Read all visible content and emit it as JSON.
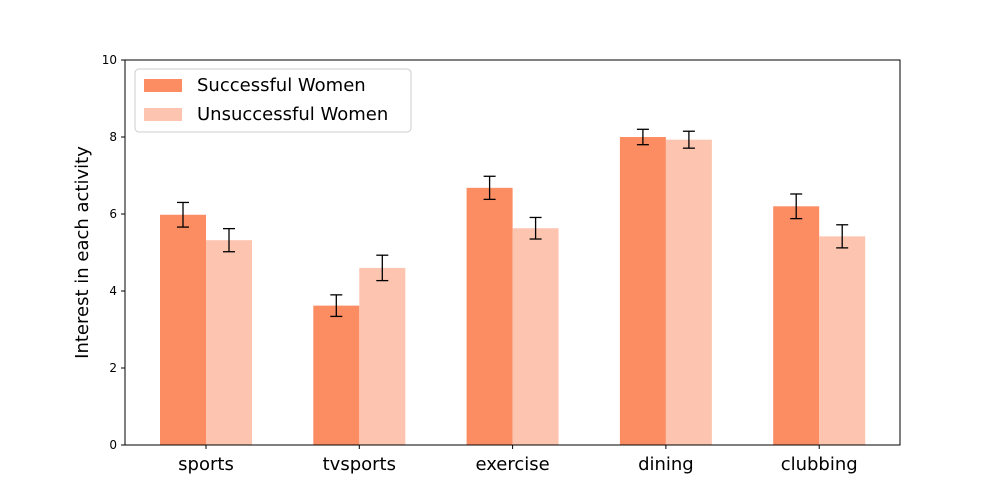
{
  "chart_data": {
    "type": "bar",
    "title": "",
    "xlabel": "",
    "ylabel": "Interest in each activity",
    "ylim": [
      0,
      10
    ],
    "yticks": [
      "0",
      "2",
      "4",
      "6",
      "8",
      "10"
    ],
    "categories": [
      "sports",
      "tvsports",
      "exercise",
      "dining",
      "clubbing"
    ],
    "series": [
      {
        "name": "Successful Women",
        "color": "#fc8d62",
        "values": [
          5.98,
          3.62,
          6.68,
          8.0,
          6.2
        ],
        "errors": [
          0.32,
          0.28,
          0.3,
          0.2,
          0.32
        ]
      },
      {
        "name": "Unsuccessful Women",
        "color": "#fdc4b0",
        "values": [
          5.32,
          4.6,
          5.63,
          7.93,
          5.42
        ],
        "errors": [
          0.3,
          0.33,
          0.28,
          0.22,
          0.3
        ]
      }
    ],
    "legend_position": "top-left",
    "grid": false
  }
}
